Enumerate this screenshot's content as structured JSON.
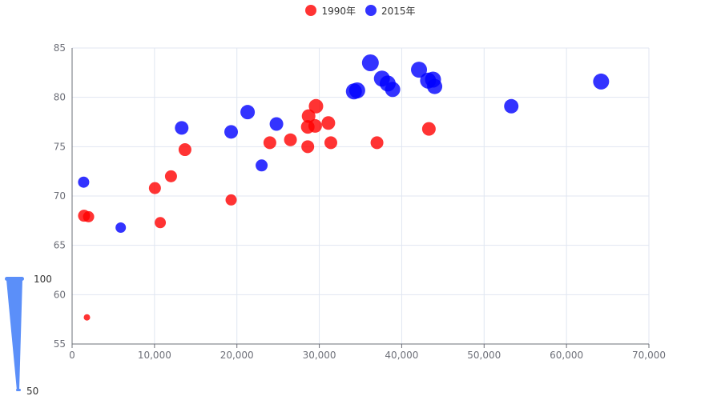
{
  "legend": {
    "series_1990": {
      "label": "1990年",
      "color": "#ff0000"
    },
    "series_2015": {
      "label": "2015年",
      "color": "#0000ff"
    }
  },
  "visual_map": {
    "max_label": "100",
    "min_label": "50",
    "color": "#5b8ff9"
  },
  "chart_data": {
    "type": "scatter",
    "title": "",
    "xlabel": "",
    "ylabel": "",
    "xlim": [
      0,
      70000
    ],
    "ylim": [
      55,
      85
    ],
    "x_ticks": [
      0,
      10000,
      20000,
      30000,
      40000,
      50000,
      60000,
      70000
    ],
    "y_ticks": [
      55,
      60,
      65,
      70,
      75,
      80,
      85
    ],
    "grid": true,
    "legend_position": "top-center",
    "series": [
      {
        "name": "1990年",
        "color": "#ff0000",
        "points": [
          [
            1450,
            68.0
          ],
          [
            2000,
            67.9
          ],
          [
            1800,
            57.7
          ],
          [
            10050,
            70.8
          ],
          [
            10700,
            67.3
          ],
          [
            12000,
            72.0
          ],
          [
            13700,
            74.7
          ],
          [
            19300,
            69.6
          ],
          [
            24000,
            75.4
          ],
          [
            26500,
            75.7
          ],
          [
            28600,
            75.0
          ],
          [
            28600,
            77.0
          ],
          [
            28700,
            78.1
          ],
          [
            29500,
            77.1
          ],
          [
            29600,
            79.1
          ],
          [
            31100,
            77.4
          ],
          [
            31400,
            75.4
          ],
          [
            37000,
            75.4
          ],
          [
            43300,
            76.8
          ]
        ],
        "sizes": [
          15,
          14,
          8,
          15,
          14,
          15,
          16,
          14,
          16,
          16,
          16,
          17,
          17,
          17,
          18,
          17,
          16,
          16,
          17
        ]
      },
      {
        "name": "2015年",
        "color": "#0000ff",
        "points": [
          [
            1400,
            71.4
          ],
          [
            5900,
            66.8
          ],
          [
            13300,
            76.9
          ],
          [
            19300,
            76.5
          ],
          [
            21300,
            78.5
          ],
          [
            23000,
            73.1
          ],
          [
            24800,
            77.3
          ],
          [
            34200,
            80.6
          ],
          [
            34600,
            80.7
          ],
          [
            36200,
            83.5
          ],
          [
            37600,
            81.9
          ],
          [
            38300,
            81.4
          ],
          [
            38900,
            80.8
          ],
          [
            42100,
            82.8
          ],
          [
            43200,
            81.7
          ],
          [
            43800,
            81.8
          ],
          [
            44000,
            81.1
          ],
          [
            53300,
            79.1
          ],
          [
            64200,
            81.6
          ]
        ],
        "sizes": [
          14,
          13,
          17,
          17,
          18,
          15,
          17,
          20,
          20,
          21,
          20,
          20,
          19,
          20,
          20,
          20,
          19,
          18,
          20
        ]
      }
    ]
  }
}
